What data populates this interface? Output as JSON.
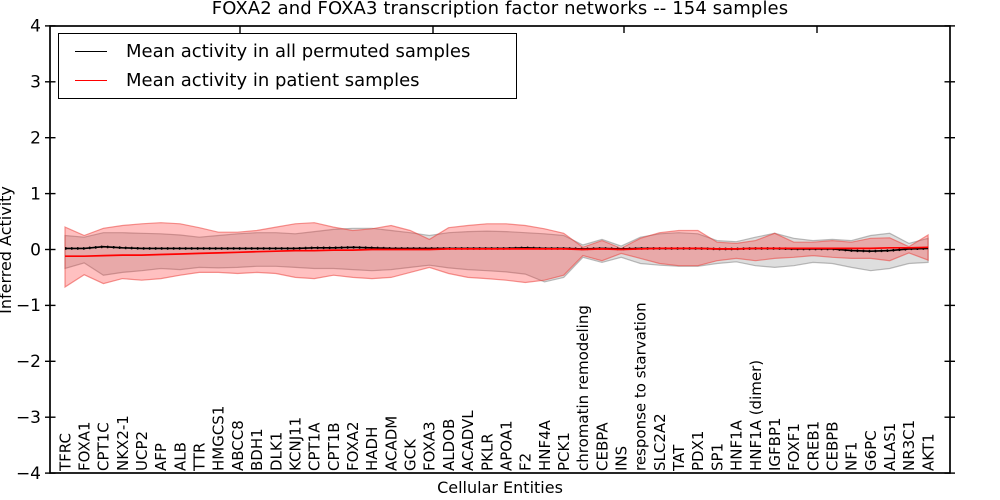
{
  "chart_data": {
    "type": "line",
    "title": "FOXA2 and FOXA3 transcription factor networks -- 154 samples",
    "xlabel": "Cellular Entities",
    "ylabel": "Inferred Activity",
    "ylim": [
      -4,
      4
    ],
    "yticks": [
      4,
      3,
      2,
      1,
      0,
      -1,
      -2,
      -3,
      -4
    ],
    "ytick_labels": [
      "4",
      "3",
      "2",
      "1",
      "0",
      "−1",
      "−2",
      "−3",
      "−4"
    ],
    "legend_position": "upper left",
    "grid": false,
    "categories": [
      "TFRC",
      "FOXA1",
      "CPT1C",
      "NKX2-1",
      "UCP2",
      "AFP",
      "ALB",
      "TTR",
      "HMGCS1",
      "ABCC8",
      "BDH1",
      "DLK1",
      "KCNJ11",
      "CPT1A",
      "CPT1B",
      "FOXA2",
      "HADH",
      "ACADM",
      "GCK",
      "FOXA3",
      "ALDOB",
      "ACADVL",
      "PKLR",
      "APOA1",
      "F2",
      "HNF4A",
      "PCK1",
      "chromatin remodeling",
      "CEBPA",
      "INS",
      "response to starvation",
      "SLC2A2",
      "TAT",
      "PDX1",
      "SP1",
      "HNF1A",
      "HNF1A (dimer)",
      "IGFBP1",
      "FOXF1",
      "CREB1",
      "CEBPB",
      "NF1",
      "G6PC",
      "ALAS1",
      "NR3C1",
      "AKT1"
    ],
    "series": [
      {
        "name": "Mean activity in all permuted samples",
        "color": "#000000",
        "band_fill": "rgba(145,145,145,0.30)",
        "band_edge": "rgba(110,110,110,0.45)",
        "mean": [
          0.02,
          0.02,
          0.05,
          0.03,
          0.02,
          0.02,
          0.02,
          0.02,
          0.02,
          0.02,
          0.02,
          0.02,
          0.02,
          0.03,
          0.03,
          0.04,
          0.03,
          0.02,
          0.02,
          0.02,
          0.02,
          0.02,
          0.02,
          0.02,
          0.03,
          0.02,
          0.02,
          0.01,
          0.02,
          0.01,
          0.02,
          0.02,
          0.02,
          0.02,
          0.01,
          0.01,
          0.02,
          0.02,
          0.01,
          0.01,
          0.01,
          -0.02,
          -0.03,
          -0.02,
          0.01,
          0.02
        ],
        "band_upper": [
          0.25,
          0.22,
          0.3,
          0.3,
          0.29,
          0.28,
          0.26,
          0.22,
          0.25,
          0.28,
          0.3,
          0.3,
          0.28,
          0.32,
          0.36,
          0.38,
          0.38,
          0.34,
          0.3,
          0.25,
          0.3,
          0.32,
          0.33,
          0.32,
          0.3,
          0.28,
          0.25,
          0.08,
          0.18,
          0.06,
          0.22,
          0.28,
          0.3,
          0.28,
          0.16,
          0.14,
          0.22,
          0.29,
          0.2,
          0.16,
          0.18,
          0.16,
          0.25,
          0.29,
          0.11,
          0.2
        ],
        "band_lower": [
          -0.34,
          -0.24,
          -0.46,
          -0.41,
          -0.38,
          -0.34,
          -0.36,
          -0.32,
          -0.33,
          -0.32,
          -0.3,
          -0.3,
          -0.32,
          -0.34,
          -0.34,
          -0.36,
          -0.38,
          -0.36,
          -0.32,
          -0.28,
          -0.33,
          -0.36,
          -0.38,
          -0.4,
          -0.44,
          -0.58,
          -0.5,
          -0.14,
          -0.23,
          -0.14,
          -0.25,
          -0.28,
          -0.3,
          -0.3,
          -0.25,
          -0.22,
          -0.29,
          -0.32,
          -0.29,
          -0.23,
          -0.25,
          -0.32,
          -0.38,
          -0.34,
          -0.25,
          -0.23
        ]
      },
      {
        "name": "Mean activity in patient samples",
        "color": "#ff0000",
        "band_fill": "rgba(255,45,45,0.30)",
        "band_edge": "rgba(235,65,60,0.55)",
        "mean": [
          -0.12,
          -0.12,
          -0.11,
          -0.1,
          -0.1,
          -0.09,
          -0.08,
          -0.07,
          -0.06,
          -0.05,
          -0.04,
          -0.03,
          -0.02,
          -0.02,
          -0.01,
          -0.01,
          0.0,
          0.0,
          0.0,
          0.0,
          0.01,
          0.01,
          0.01,
          0.01,
          0.01,
          0.01,
          0.01,
          0.0,
          0.01,
          0.0,
          0.01,
          0.02,
          0.02,
          0.02,
          0.01,
          0.01,
          0.02,
          0.02,
          0.02,
          0.02,
          0.02,
          0.02,
          0.02,
          0.03,
          0.03,
          0.04
        ],
        "band_upper": [
          0.4,
          0.25,
          0.38,
          0.43,
          0.46,
          0.48,
          0.46,
          0.39,
          0.31,
          0.31,
          0.34,
          0.4,
          0.46,
          0.48,
          0.4,
          0.34,
          0.37,
          0.43,
          0.34,
          0.18,
          0.39,
          0.43,
          0.46,
          0.46,
          0.43,
          0.37,
          0.29,
          0.04,
          0.16,
          0.02,
          0.2,
          0.3,
          0.34,
          0.34,
          0.13,
          0.11,
          0.16,
          0.29,
          0.13,
          0.13,
          0.16,
          0.13,
          0.2,
          0.21,
          0.05,
          0.26
        ],
        "band_lower": [
          -0.67,
          -0.45,
          -0.61,
          -0.52,
          -0.55,
          -0.52,
          -0.46,
          -0.41,
          -0.41,
          -0.43,
          -0.41,
          -0.43,
          -0.5,
          -0.52,
          -0.46,
          -0.5,
          -0.52,
          -0.5,
          -0.41,
          -0.32,
          -0.43,
          -0.5,
          -0.52,
          -0.55,
          -0.59,
          -0.55,
          -0.46,
          -0.11,
          -0.2,
          -0.07,
          -0.16,
          -0.25,
          -0.29,
          -0.29,
          -0.2,
          -0.16,
          -0.2,
          -0.16,
          -0.14,
          -0.11,
          -0.14,
          -0.16,
          -0.16,
          -0.2,
          -0.06,
          -0.19
        ]
      }
    ]
  }
}
